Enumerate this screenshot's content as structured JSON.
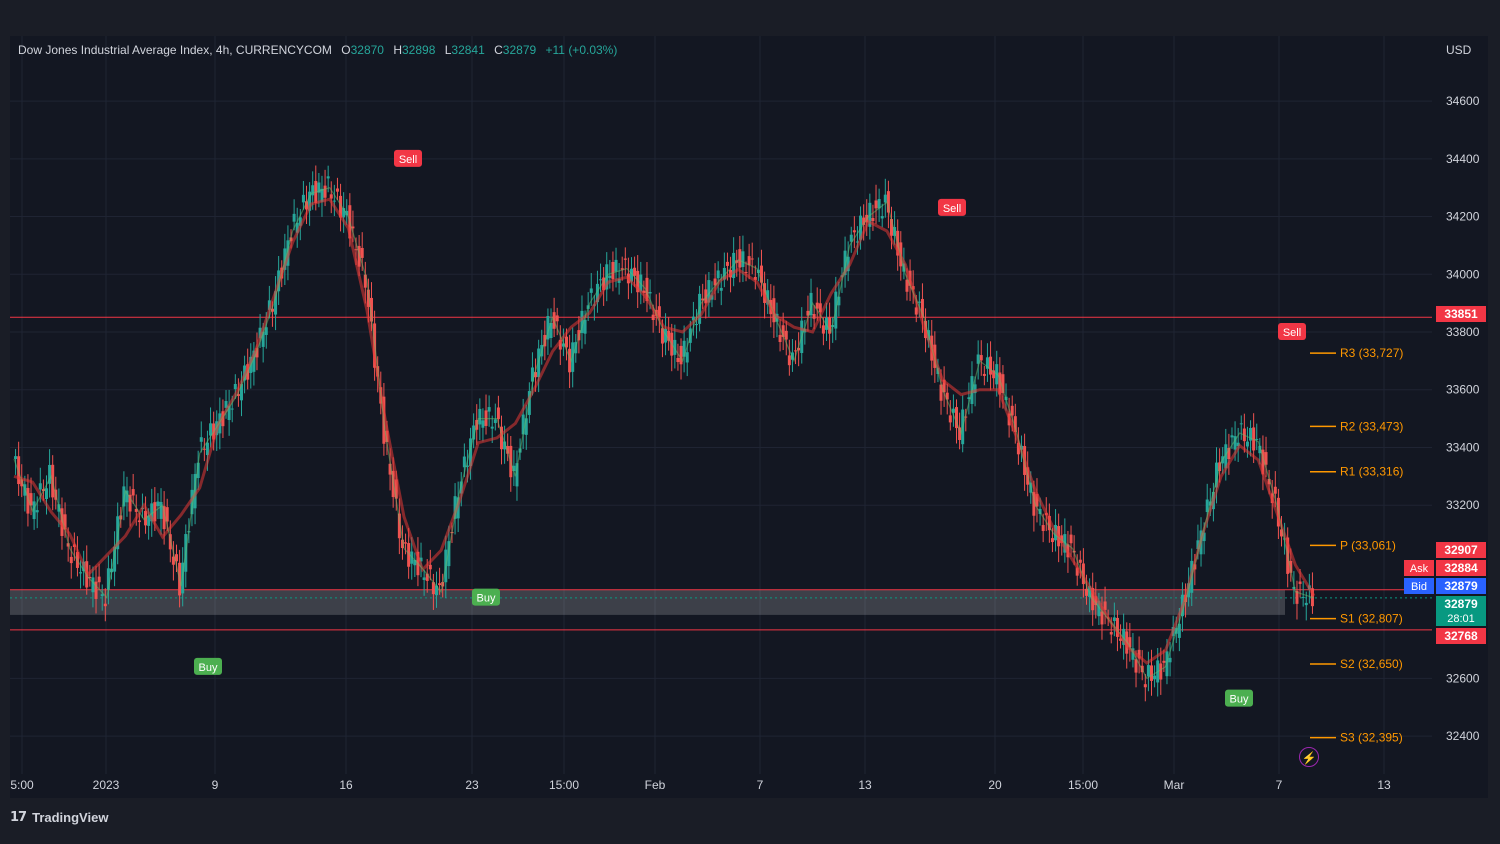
{
  "header": {
    "symbol": "Dow Jones Industrial Average Index, 4h, CURRENCYCOM",
    "open_label": "O",
    "open": "32870",
    "high_label": "H",
    "high": "32898",
    "low_label": "L",
    "low": "32841",
    "close_label": "C",
    "close": "32879",
    "change": "+11 (+0.03%)"
  },
  "currency": "USD",
  "brand": {
    "logo": "17",
    "name": "TradingView"
  },
  "colors": {
    "background": "#131722",
    "up": "#26a69a",
    "down": "#ef5350",
    "buy": "#4caf50",
    "sell": "#f23645",
    "pivot": "#ff9800",
    "grid": "#1f2433"
  },
  "chart_data": {
    "type": "line",
    "series": [
      {
        "values": [
          33360,
          33180,
          33300,
          33050,
          32950,
          32880,
          33250,
          33150,
          33200,
          32920,
          33380,
          33480,
          33580,
          33720,
          33900,
          34150,
          34280,
          34300,
          34200,
          33980,
          33450,
          33050,
          32980,
          32900,
          33250,
          33500,
          33500,
          33300,
          33650,
          33850,
          33700,
          33900,
          34000,
          34020,
          33950,
          33800,
          33700,
          33900,
          33980,
          34050,
          34020,
          33850,
          33700,
          33900,
          33800,
          34100,
          34200,
          34250,
          34000,
          33850,
          33600,
          33450,
          33700,
          33650,
          33450,
          33200,
          33100,
          33050,
          32880,
          32800,
          32720,
          32600,
          32640,
          32850,
          33100,
          33350,
          33450,
          33420,
          33200,
          32900,
          32879
        ]
      }
    ],
    "x_ticks": [
      "5:00",
      "2023",
      "9",
      "16",
      "23",
      "15:00",
      "Feb",
      "7",
      "13",
      "20",
      "15:00",
      "Mar",
      "7",
      "13"
    ],
    "y_ticks": [
      34600,
      34400,
      34200,
      34000,
      33800,
      33600,
      33400,
      33200,
      32600,
      32400
    ],
    "ylim": [
      32300,
      34680
    ],
    "price_tags": [
      {
        "label": "",
        "value": "33851",
        "color": "#f23645"
      },
      {
        "label": "",
        "value": "32907",
        "color": "#f23645"
      },
      {
        "label": "Ask",
        "value": "32884",
        "color": "#f23645"
      },
      {
        "label": "Bid",
        "value": "32879",
        "color": "#2962ff"
      },
      {
        "label": "",
        "value": "32879",
        "color": "#089981",
        "countdown": "28:01"
      },
      {
        "label": "",
        "value": "32768",
        "color": "#f23645"
      }
    ],
    "horizontal_lines": [
      33851,
      32907,
      32768
    ],
    "pivot_levels": [
      {
        "label": "R3 (33,727)",
        "value": 33727
      },
      {
        "label": "R2 (33,473)",
        "value": 33473
      },
      {
        "label": "R1 (33,316)",
        "value": 33316
      },
      {
        "label": "P (33,061)",
        "value": 33061
      },
      {
        "label": "S1 (32,807)",
        "value": 32807
      },
      {
        "label": "S2 (32,650)",
        "value": 32650
      },
      {
        "label": "S3 (32,395)",
        "value": 32395
      }
    ],
    "signals": [
      {
        "type": "sell",
        "label": "Sell",
        "x": "16",
        "value": 34400
      },
      {
        "type": "buy",
        "label": "Buy",
        "x": "9",
        "value": 32640
      },
      {
        "type": "buy",
        "label": "Buy",
        "x": "23",
        "value": 32880
      },
      {
        "type": "sell",
        "label": "Sell",
        "x": "20",
        "value": 34230
      },
      {
        "type": "sell",
        "label": "Sell",
        "x": "7",
        "value": 33800
      },
      {
        "type": "buy",
        "label": "Buy",
        "x": "Mar",
        "value": 32530
      }
    ]
  }
}
